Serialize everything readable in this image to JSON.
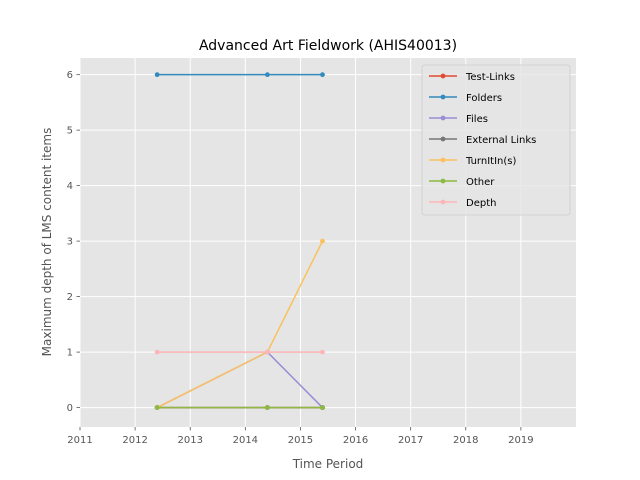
{
  "chart_data": {
    "type": "line",
    "title": "Advanced Art Fieldwork (AHIS40013)",
    "xlabel": "Time Period",
    "ylabel": "Maximum depth of LMS content items",
    "xlim": [
      2011,
      2020
    ],
    "ylim": [
      -0.35,
      6.3
    ],
    "xticks": [
      2011,
      2012,
      2013,
      2014,
      2015,
      2016,
      2017,
      2018,
      2019
    ],
    "yticks": [
      0,
      1,
      2,
      3,
      4,
      5,
      6
    ],
    "grid": true,
    "legend_position": "top-right",
    "x": [
      2012.4,
      2014.4,
      2015.4
    ],
    "series": [
      {
        "name": "Test-Links",
        "color": "#e24a33",
        "values": [
          0,
          0,
          0
        ]
      },
      {
        "name": "Folders",
        "color": "#348abd",
        "values": [
          6,
          6,
          6
        ]
      },
      {
        "name": "Files",
        "color": "#988ed5",
        "values": [
          0,
          1,
          0
        ]
      },
      {
        "name": "External Links",
        "color": "#777777",
        "values": [
          0,
          0,
          0
        ]
      },
      {
        "name": "TurnItIn(s)",
        "color": "#fbc15e",
        "values": [
          0,
          1,
          3
        ]
      },
      {
        "name": "Other",
        "color": "#8eba42",
        "values": [
          0,
          0,
          0
        ]
      },
      {
        "name": "Depth",
        "color": "#ffb5b8",
        "values": [
          1,
          1,
          1
        ]
      }
    ]
  }
}
